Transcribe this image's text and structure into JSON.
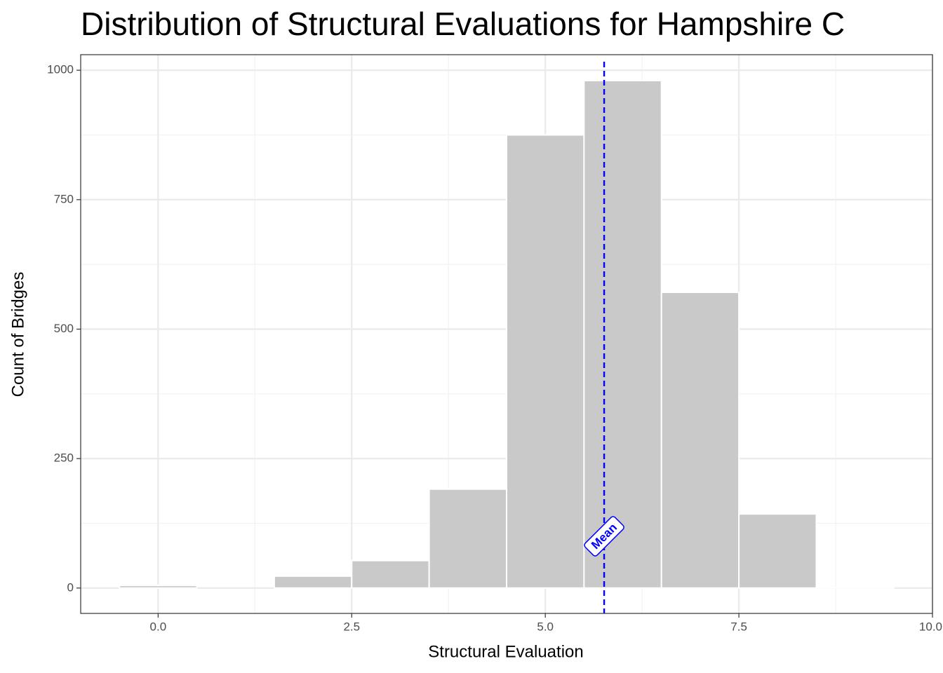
{
  "chart_data": {
    "type": "histogram",
    "title": "Distribution of Structural Evaluations for Hampshire C",
    "x_label": "Structural Evaluation",
    "y_label": "Count of Bridges",
    "bins": [
      -0.5,
      0.5,
      1.5,
      2.5,
      3.5,
      4.5,
      5.5,
      6.5,
      7.5,
      8.5,
      9.5
    ],
    "values": [
      5,
      0,
      23,
      53,
      191,
      875,
      980,
      571,
      143,
      1
    ],
    "color": "#c9c9c9",
    "xlim": [
      -1,
      10
    ],
    "ylim": [
      -49,
      1030
    ],
    "xticks": [
      {
        "value": 0,
        "label": "0.0"
      },
      2.5,
      {
        "value": 5,
        "label": "5.0"
      },
      7.5,
      {
        "value": 10,
        "label": "10.0"
      }
    ],
    "yticks": [
      0,
      250,
      500,
      750,
      1000
    ],
    "grid": true,
    "mean_line": {
      "x": 5.76,
      "color": "#0000ff",
      "dashed": true
    },
    "annotations": [
      {
        "text": "Mean",
        "x": 5.76,
        "y": 100
      }
    ]
  }
}
